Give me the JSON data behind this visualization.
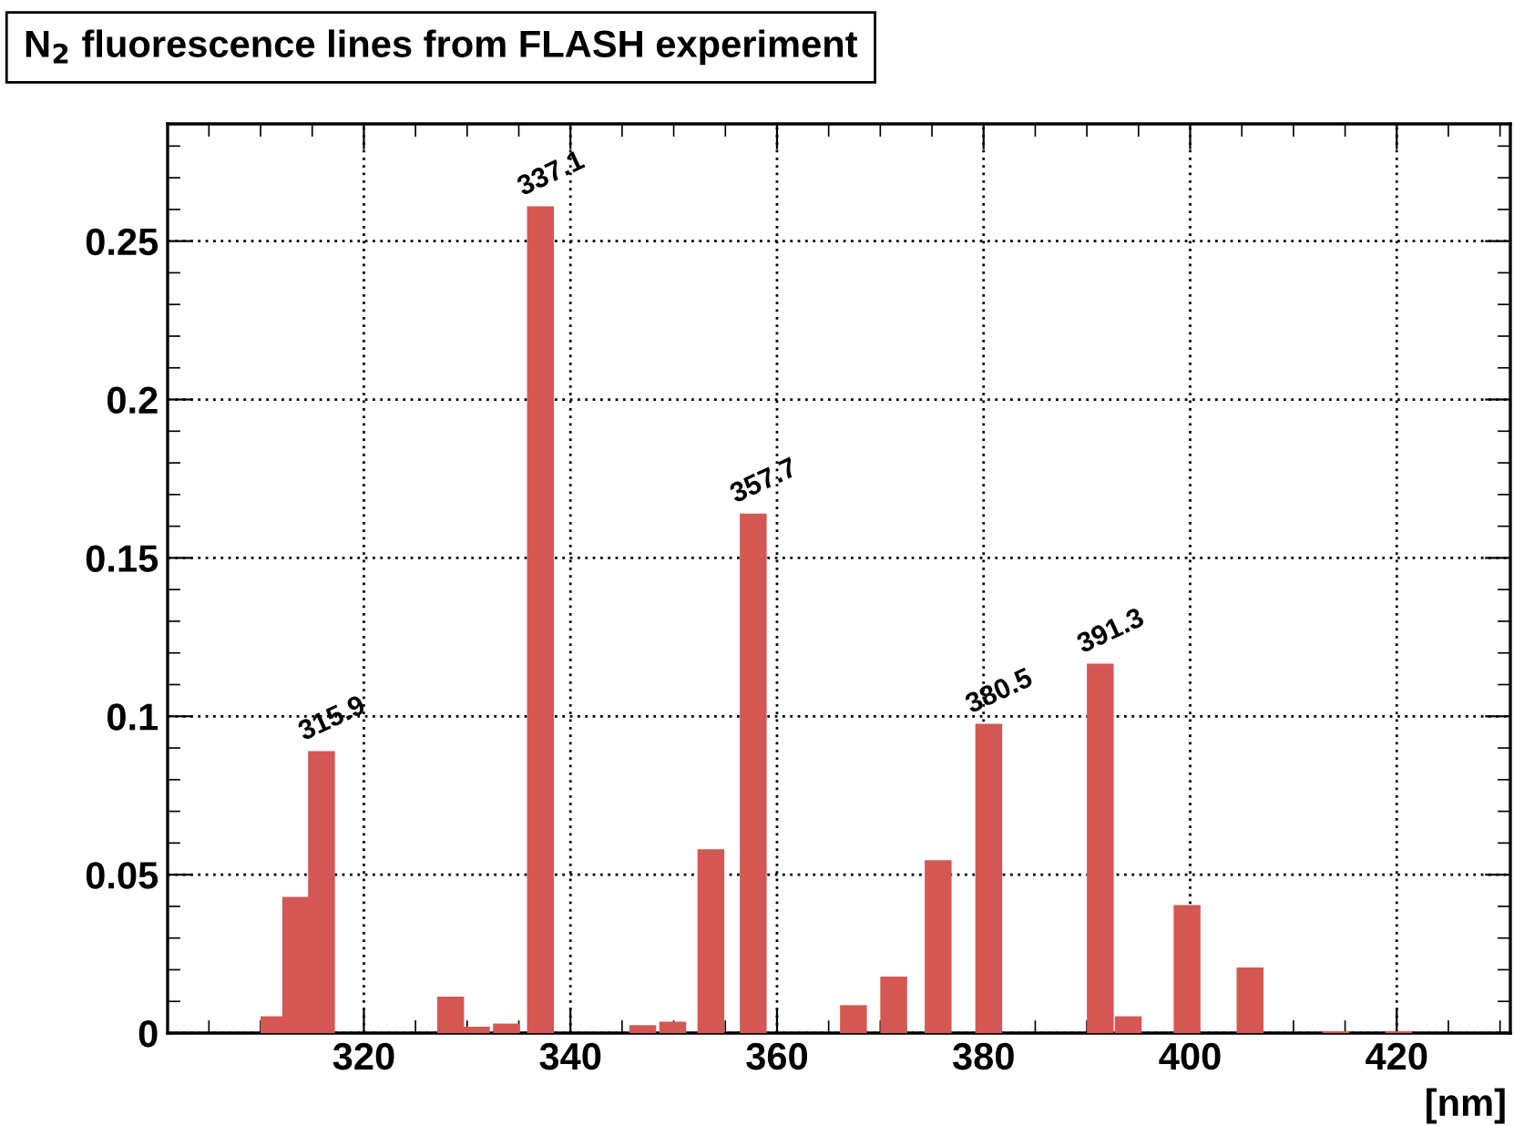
{
  "chart_data": {
    "type": "bar",
    "title": "N$_{2}$ fluorescence lines from FLASH experiment",
    "xlabel": "[nm]",
    "x": [
      311.3,
      313.4,
      315.9,
      328.4,
      330.9,
      333.8,
      337.1,
      347.0,
      349.9,
      353.6,
      357.7,
      367.4,
      371.3,
      375.6,
      380.5,
      391.3,
      394.0,
      399.7,
      405.8,
      414.1,
      420.2
    ],
    "values": [
      0.0053,
      0.043,
      0.089,
      0.0115,
      0.002,
      0.003,
      0.261,
      0.0025,
      0.0036,
      0.058,
      0.164,
      0.0088,
      0.0178,
      0.0546,
      0.0976,
      0.1166,
      0.0053,
      0.0404,
      0.0207,
      0.0006,
      0.0006
    ],
    "color": "#d45753",
    "xlim": [
      301,
      431
    ],
    "xticks": [
      320,
      340,
      360,
      380,
      400,
      420
    ],
    "ylim": [
      0,
      0.287
    ],
    "yticks": [
      0,
      0.05,
      0.1,
      0.15,
      0.2,
      0.25
    ],
    "grid": true,
    "annotations": [
      {
        "text": "315.9",
        "x": 315.9,
        "y": 0.089
      },
      {
        "text": "337.1",
        "x": 337.1,
        "y": 0.261
      },
      {
        "text": "357.7",
        "x": 357.7,
        "y": 0.164
      },
      {
        "text": "380.5",
        "x": 380.5,
        "y": 0.0976
      },
      {
        "text": "391.3",
        "x": 391.3,
        "y": 0.1166
      }
    ]
  }
}
